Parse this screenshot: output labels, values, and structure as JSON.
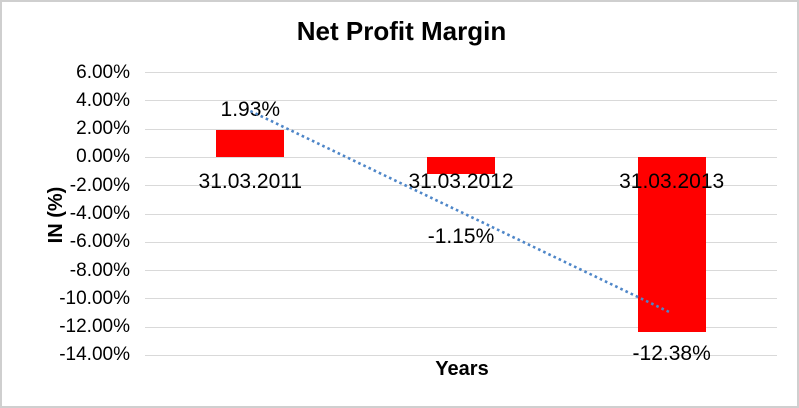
{
  "chart_data": {
    "type": "bar",
    "title": "Net Profit Margin",
    "xlabel": "Years",
    "ylabel": "IN (%)",
    "categories": [
      "31.03.2011",
      "31.03.2012",
      "31.03.2013"
    ],
    "values": [
      1.93,
      -1.15,
      -12.38
    ],
    "data_labels": [
      "1.93%",
      "-1.15%",
      "-12.38%"
    ],
    "y_tick_labels": [
      "6.00%",
      "4.00%",
      "2.00%",
      "0.00%",
      "-2.00%",
      "-4.00%",
      "-6.00%",
      "-8.00%",
      "-10.00%",
      "-12.00%",
      "-14.00%"
    ],
    "y_tick_values": [
      6,
      4,
      2,
      0,
      -2,
      -4,
      -6,
      -8,
      -10,
      -12,
      -14
    ],
    "ylim": [
      -14,
      6
    ],
    "y_step": 2,
    "grid": true,
    "legend": "none",
    "bar_color": "#FF0000",
    "gridline_color": "#D9D9D9",
    "text_color": "#000000",
    "trendline": {
      "type": "linear",
      "style": "dotted",
      "color": "#4E86C8",
      "start_value": 3.29,
      "end_value": -11.02
    }
  }
}
